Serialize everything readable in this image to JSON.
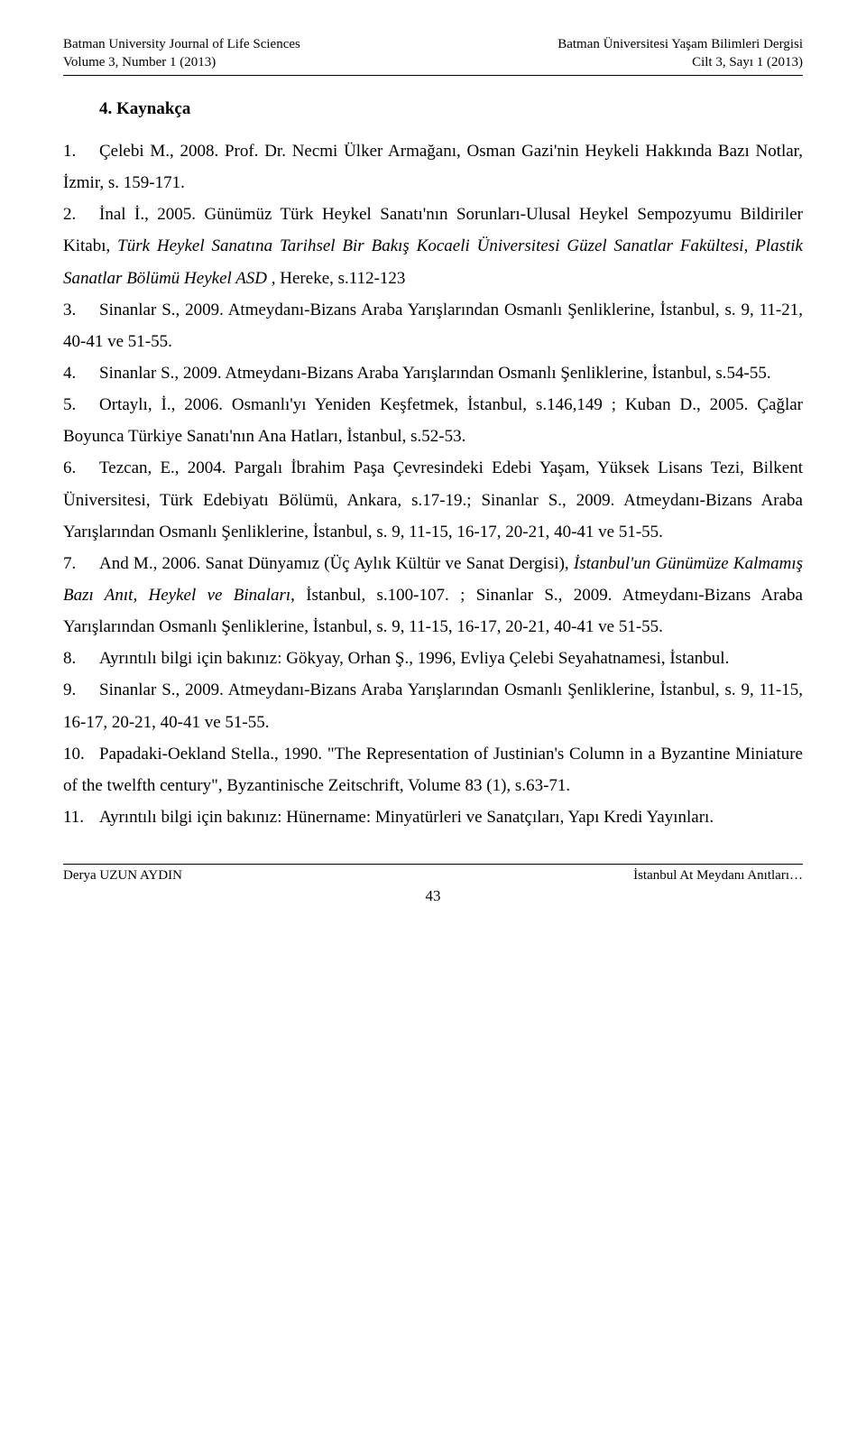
{
  "header": {
    "left_line1": "Batman University Journal of Life Sciences",
    "left_line2": "Volume 3, Number 1 (2013)",
    "right_line1": "Batman Üniversitesi Yaşam Bilimleri Dergisi",
    "right_line2": "Cilt 3, Sayı 1 (2013)"
  },
  "section_title": "4. Kaynakça",
  "refs": {
    "r1_num": "1.",
    "r1_a": "Çelebi M., 2008. Prof. Dr. Necmi Ülker Armağanı, Osman Gazi'nin Heykeli Hakkında Bazı Notlar, İzmir, s. 159-171.",
    "r2_num": "2.",
    "r2_a": "İnal İ., 2005. Günümüz Türk Heykel Sanatı'nın Sorunları-Ulusal Heykel Sempozyumu Bildiriler Kitabı, ",
    "r2_i": "Türk Heykel Sanatına Tarihsel Bir Bakış Kocaeli Üniversitesi Güzel Sanatlar Fakültesi, Plastik Sanatlar Bölümü Heykel ASD ,",
    "r2_b": " Hereke, s.112-123",
    "r3_num": "3.",
    "r3_a": "Sinanlar S., 2009. Atmeydanı-Bizans Araba Yarışlarından Osmanlı Şenliklerine, İstanbul, s. 9, 11-21, 40-41 ve 51-55.",
    "r4_num": "4.",
    "r4_a": "Sinanlar S., 2009. Atmeydanı-Bizans Araba Yarışlarından Osmanlı Şenliklerine, İstanbul, s.54-55.",
    "r5_num": "5.",
    "r5_a": "Ortaylı, İ., 2006. Osmanlı'yı Yeniden Keşfetmek, İstanbul, s.146,149   ; Kuban D., 2005. Çağlar Boyunca Türkiye Sanatı'nın Ana Hatları, İstanbul, s.52-53.",
    "r6_num": "6.",
    "r6_a": "Tezcan, E., 2004. Pargalı İbrahim Paşa Çevresindeki Edebi Yaşam, Yüksek Lisans Tezi,  Bilkent Üniversitesi, Türk Edebiyatı Bölümü, Ankara, s.17-19.; Sinanlar S., 2009. Atmeydanı-Bizans Araba Yarışlarından Osmanlı Şenliklerine, İstanbul, s. 9, 11-15, 16-17, 20-21, 40-41 ve 51-55.",
    "r7_num": "7.",
    "r7_a": "And M., 2006. Sanat Dünyamız (Üç Aylık Kültür ve Sanat Dergisi), ",
    "r7_i": "İstanbul'un Günümüze Kalmamış Bazı Anıt, Heykel ve Binaları,",
    "r7_b": " İstanbul, s.100-107. ; Sinanlar S., 2009. Atmeydanı-Bizans Araba Yarışlarından Osmanlı Şenliklerine, İstanbul, s. 9, 11-15, 16-17, 20-21, 40-41 ve 51-55.",
    "r8_num": "8.",
    "r8_a": "Ayrıntılı  bilgi  için  bakınız:  Gökyay,  Orhan  Ş.,  1996,  Evliya  Çelebi Seyahatnamesi, İstanbul.",
    "r9_num": "9.",
    "r9_a": "Sinanlar   S.,    2009.   Atmeydanı-Bizans   Araba   Yarışlarından   Osmanlı Şenliklerine, İstanbul, s. 9, 11-15, 16-17, 20-21, 40-41 ve 51-55.",
    "r10_num": "10.",
    "r10_a": "Papadaki-Oekland Stella., 1990. \"The Representation of Justinian's Column in a Byzantine Miniature of the twelfth century\", Byzantinische Zeitschrift, Volume 83 (1), s.63-71.",
    "r11_num": "11.",
    "r11_a": "Ayrıntılı bilgi için bakınız: Hünername: Minyatürleri ve Sanatçıları, Yapı Kredi Yayınları."
  },
  "footer": {
    "left": "Derya UZUN AYDIN",
    "right": "İstanbul At Meydanı Anıtları…",
    "page": "43"
  },
  "colors": {
    "text": "#000000",
    "background": "#ffffff",
    "rule": "#000000"
  },
  "typography": {
    "body_fontsize_pt": 14,
    "header_footer_fontsize_pt": 11,
    "line_height": 1.85,
    "font_family": "Times New Roman"
  }
}
